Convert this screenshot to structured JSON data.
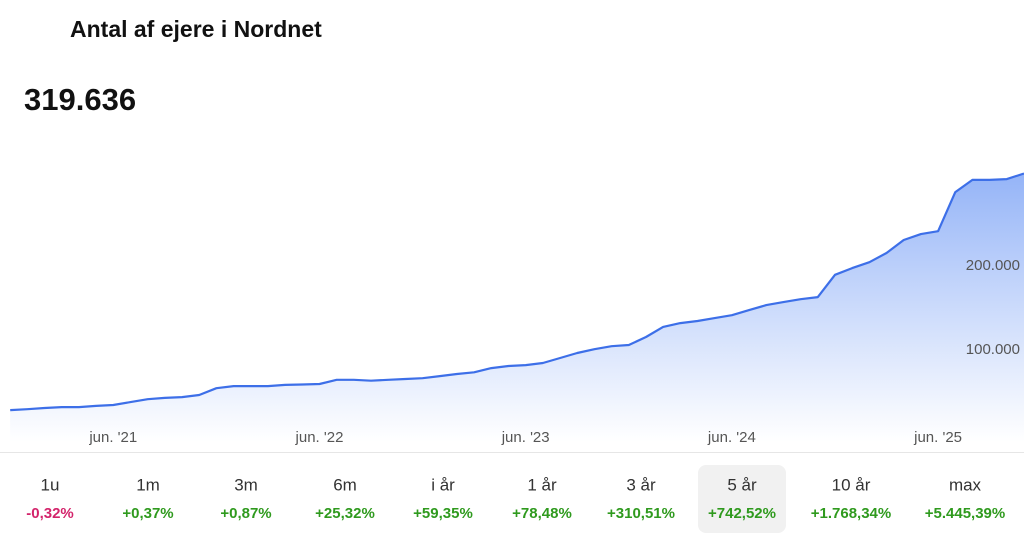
{
  "chart_data": {
    "type": "area",
    "title": "Antal af ejere i Nordnet",
    "current_value": "319.636",
    "x": [
      "2020-12",
      "2021-01",
      "2021-02",
      "2021-03",
      "2021-04",
      "2021-05",
      "2021-06",
      "2021-07",
      "2021-08",
      "2021-09",
      "2021-10",
      "2021-11",
      "2021-12",
      "2022-01",
      "2022-02",
      "2022-03",
      "2022-04",
      "2022-05",
      "2022-06",
      "2022-07",
      "2022-08",
      "2022-09",
      "2022-10",
      "2022-11",
      "2022-12",
      "2023-01",
      "2023-02",
      "2023-03",
      "2023-04",
      "2023-05",
      "2023-06",
      "2023-07",
      "2023-08",
      "2023-09",
      "2023-10",
      "2023-11",
      "2023-12",
      "2024-01",
      "2024-02",
      "2024-03",
      "2024-04",
      "2024-05",
      "2024-06",
      "2024-07",
      "2024-08",
      "2024-09",
      "2024-10",
      "2024-11",
      "2024-12",
      "2025-01",
      "2025-02",
      "2025-03",
      "2025-04",
      "2025-05",
      "2025-06",
      "2025-07",
      "2025-08",
      "2025-09",
      "2025-10",
      "2025-11"
    ],
    "series": [
      {
        "color": "#3d6fe8",
        "values": [
          38000,
          39000,
          40500,
          41500,
          41500,
          43000,
          44000,
          47500,
          51000,
          52500,
          53500,
          56000,
          64000,
          66500,
          66500,
          66500,
          68000,
          68500,
          69000,
          74000,
          74000,
          73000,
          74000,
          75000,
          76000,
          78500,
          81000,
          83000,
          88000,
          90500,
          91500,
          94000,
          100000,
          106000,
          110500,
          114000,
          115500,
          125000,
          137000,
          141500,
          144000,
          147500,
          151000,
          157000,
          163000,
          166500,
          170000,
          172500,
          199000,
          207000,
          214000,
          225000,
          240500,
          247500,
          251000,
          297500,
          312000,
          312000,
          313000,
          319636
        ]
      }
    ],
    "xlim": [
      "2020-11",
      "2025-11"
    ],
    "xticks": [
      {
        "value": "2021-06",
        "label": "jun. '21"
      },
      {
        "value": "2022-06",
        "label": "jun. '22"
      },
      {
        "value": "2023-06",
        "label": "jun. '23"
      },
      {
        "value": "2024-06",
        "label": "jun. '24"
      },
      {
        "value": "2025-06",
        "label": "jun. '25"
      }
    ],
    "ylim": [
      0,
      400000
    ],
    "yticks": [
      {
        "value": 100000,
        "label": "100.000"
      },
      {
        "value": 200000,
        "label": "200.000"
      }
    ],
    "grid": false
  },
  "periods": [
    {
      "label": "1u",
      "change": "-0,32%"
    },
    {
      "label": "1m",
      "change": "+0,37%"
    },
    {
      "label": "3m",
      "change": "+0,87%"
    },
    {
      "label": "6m",
      "change": "+25,32%"
    },
    {
      "label": "i år",
      "change": "+59,35%"
    },
    {
      "label": "1 år",
      "change": "+78,48%"
    },
    {
      "label": "3 år",
      "change": "+310,51%"
    },
    {
      "label": "5 år",
      "change": "+742,52%"
    },
    {
      "label": "10 år",
      "change": "+1.768,34%"
    },
    {
      "label": "max",
      "change": "+5.445,39%"
    }
  ],
  "selected_period": 7,
  "positive_color": "#2f9a1e",
  "negative_color": "#d3246b"
}
